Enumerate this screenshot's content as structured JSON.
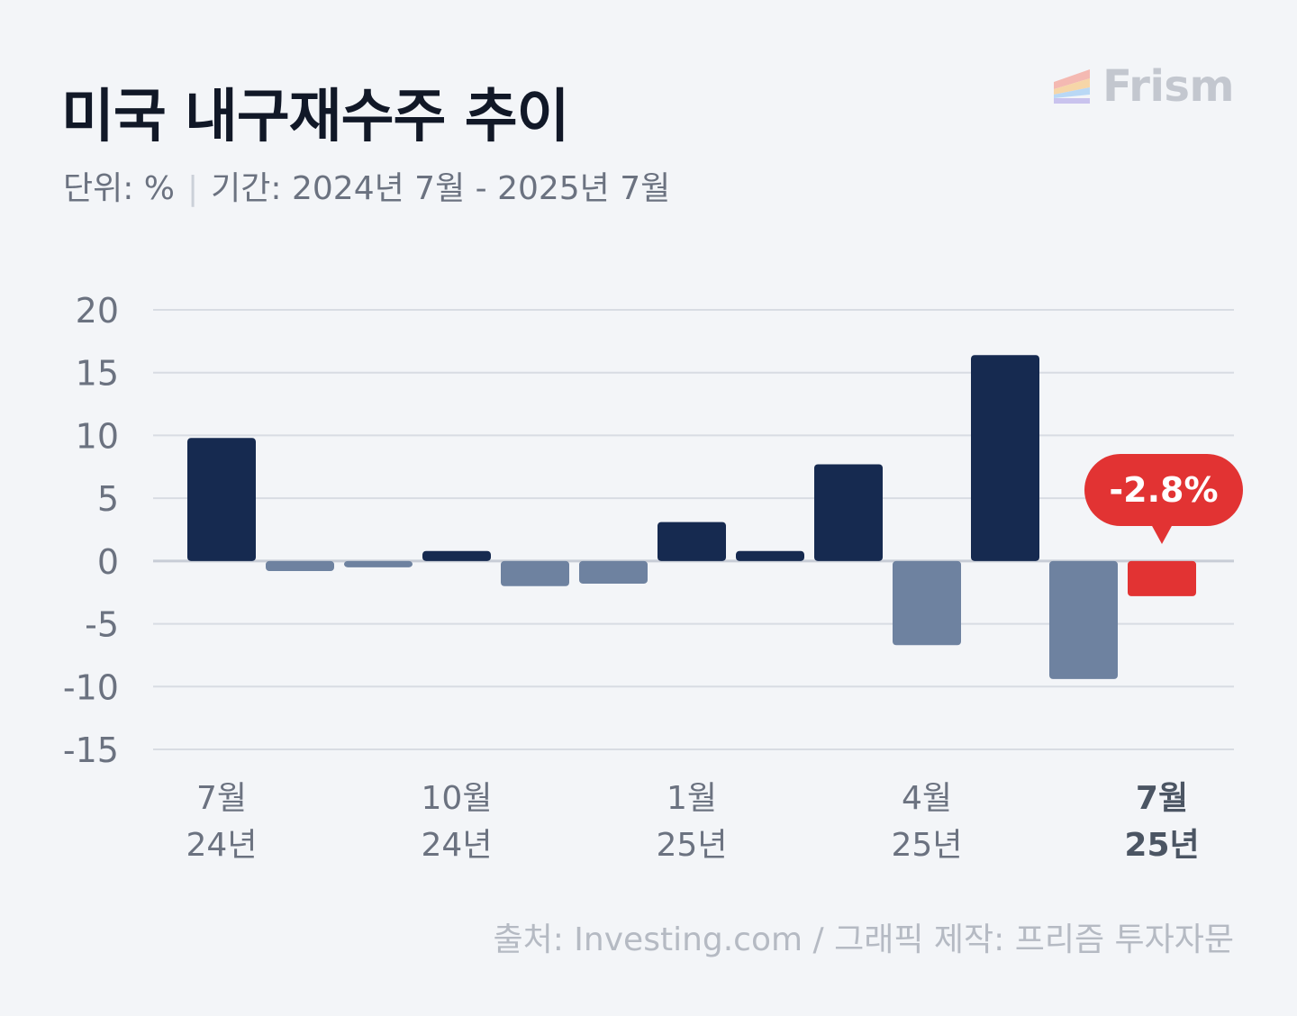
{
  "header": {
    "title": "미국 내구재수주 추이",
    "unit": "단위: %",
    "separator": "|",
    "period": "기간: 2024년 7월 - 2025년 7월"
  },
  "logo": {
    "text": "Frism",
    "colors": [
      "#f4b9b2",
      "#f6d6a8",
      "#b9d8f5",
      "#c9c3ee"
    ]
  },
  "footer": {
    "source": "출처: Investing.com / 그래픽 제작: 프리즘 투자자문"
  },
  "chart_data": {
    "type": "bar",
    "categories": [
      "2024-07",
      "2024-08",
      "2024-09",
      "2024-10",
      "2024-11",
      "2024-12",
      "2025-01",
      "2025-02",
      "2025-03",
      "2025-04",
      "2025-05",
      "2025-06",
      "2025-07"
    ],
    "values": [
      9.8,
      -0.8,
      -0.5,
      0.8,
      -2.0,
      -1.8,
      3.1,
      0.8,
      7.7,
      -6.7,
      16.4,
      -9.4,
      -2.8
    ],
    "ylim": [
      -15,
      20
    ],
    "yticks": [
      "20",
      "15",
      "10",
      "5",
      "0",
      "-5",
      "-10",
      "-15"
    ],
    "xtick_labels": [
      {
        "index": 0,
        "month": "7월",
        "year": "24년"
      },
      {
        "index": 3,
        "month": "10월",
        "year": "24년"
      },
      {
        "index": 6,
        "month": "1월",
        "year": "25년"
      },
      {
        "index": 9,
        "month": "4월",
        "year": "25년"
      },
      {
        "index": 12,
        "month": "7월",
        "year": "25년",
        "bold": true
      }
    ],
    "highlight": {
      "index": 12,
      "label": "-2.8%"
    },
    "grid": true,
    "colors": {
      "positive": "#162a50",
      "negative": "#6e82a0",
      "highlight": "#e23333",
      "grid": "#d8dce3",
      "zero_line": "#c8cdd6",
      "tick_text": "#6b7280",
      "tick_text_bold": "#4b5563"
    }
  }
}
